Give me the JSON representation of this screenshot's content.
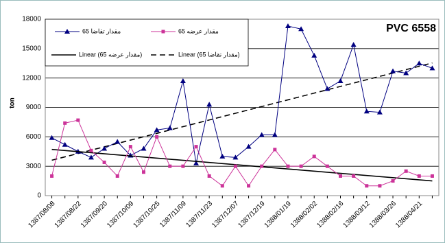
{
  "chart_data": {
    "type": "line",
    "title": "PVC 6558",
    "y_label": "ton",
    "categories": [
      "1387/08/08",
      null,
      "1387/08/22",
      null,
      "1387/09/20",
      null,
      "1387/10/09",
      null,
      "1387/10/25",
      null,
      "1387/11/09",
      null,
      "1387/11/23",
      null,
      "1387/12/07",
      null,
      "1387/12/19",
      null,
      "1388/01/19",
      null,
      "1388/02/02",
      null,
      "1388/02/16",
      null,
      "1388/03/12",
      null,
      "1388/03/26",
      null,
      "1388/04/21",
      null
    ],
    "series": [
      {
        "name": "مقدار تقاضا 65",
        "color": "#000080",
        "marker": "triangle",
        "values": [
          5900,
          5200,
          4500,
          3900,
          4800,
          5500,
          4100,
          4800,
          6700,
          6900,
          11700,
          3300,
          9300,
          4000,
          3900,
          5000,
          6200,
          6200,
          17300,
          17000,
          14300,
          10900,
          11700,
          15400,
          8600,
          8500,
          12700,
          12500,
          13500,
          13000
        ],
        "trendline": {
          "name": "Linear (مقدار تقاضا 65)",
          "dashed": true,
          "color": "#000000"
        }
      },
      {
        "name": "مقدار عرضه 65",
        "color": "#cc3399",
        "marker": "square",
        "values": [
          2000,
          7400,
          7700,
          4600,
          3400,
          2000,
          5000,
          2400,
          6000,
          3000,
          3000,
          5000,
          2000,
          1000,
          3000,
          1000,
          3000,
          4700,
          3000,
          3000,
          4000,
          3000,
          2000,
          2000,
          1000,
          1000,
          1500,
          2500,
          2000,
          2000
        ],
        "trendline": {
          "name": "Linear (مقدار عرضه 65)",
          "dashed": false,
          "color": "#000000"
        }
      }
    ],
    "ylim": [
      0,
      18000
    ],
    "yticks": [
      0,
      3000,
      6000,
      9000,
      12000,
      15000,
      18000
    ],
    "grid": true
  }
}
